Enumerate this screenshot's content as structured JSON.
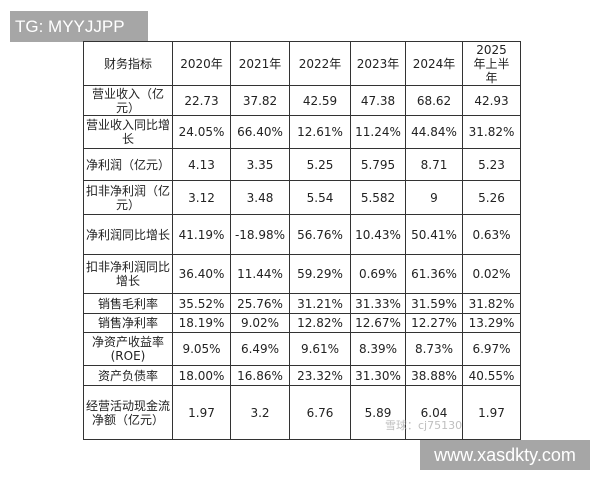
{
  "watermark_top": "TG: MYYJJPP",
  "watermark_bottom": "www.xasdkty.com",
  "watermark_xueqiu": "雪球：cj75130",
  "table": {
    "headers": [
      "财务指标",
      "2020年",
      "2021年",
      "2022年",
      "2023年",
      "2024年",
      "2025年上半年"
    ],
    "rows": [
      {
        "label": "营业收入（亿元）",
        "values": [
          "22.73",
          "37.82",
          "42.59",
          "47.38",
          "68.62",
          "42.93"
        ]
      },
      {
        "label": "营业收入同比增长",
        "values": [
          "24.05%",
          "66.40%",
          "12.61%",
          "11.24%",
          "44.84%",
          "31.82%"
        ]
      },
      {
        "label": "净利润（亿元）",
        "values": [
          "4.13",
          "3.35",
          "5.25",
          "5.795",
          "8.71",
          "5.23"
        ]
      },
      {
        "label": "扣非净利润（亿元）",
        "values": [
          "3.12",
          "3.48",
          "5.54",
          "5.582",
          "9",
          "5.26"
        ]
      },
      {
        "label": "净利润同比增长",
        "values": [
          "41.19%",
          "-18.98%",
          "56.76%",
          "10.43%",
          "50.41%",
          "0.63%"
        ]
      },
      {
        "label": "扣非净利润同比增长",
        "values": [
          "36.40%",
          "11.44%",
          "59.29%",
          "0.69%",
          "61.36%",
          "0.02%"
        ]
      },
      {
        "label": "销售毛利率",
        "values": [
          "35.52%",
          "25.76%",
          "31.21%",
          "31.33%",
          "31.59%",
          "31.82%"
        ]
      },
      {
        "label": "销售净利率",
        "values": [
          "18.19%",
          "9.02%",
          "12.82%",
          "12.67%",
          "12.27%",
          "13.29%"
        ]
      },
      {
        "label": "净资产收益率(ROE)",
        "values": [
          "9.05%",
          "6.49%",
          "9.61%",
          "8.39%",
          "8.73%",
          "6.97%"
        ]
      },
      {
        "label": "资产负债率",
        "values": [
          "18.00%",
          "16.86%",
          "23.32%",
          "31.30%",
          "38.88%",
          "40.55%"
        ]
      },
      {
        "label": "经营活动现金流净额（亿元）",
        "values": [
          "1.97",
          "3.2",
          "6.76",
          "5.89",
          "6.04",
          "1.97"
        ]
      }
    ]
  }
}
